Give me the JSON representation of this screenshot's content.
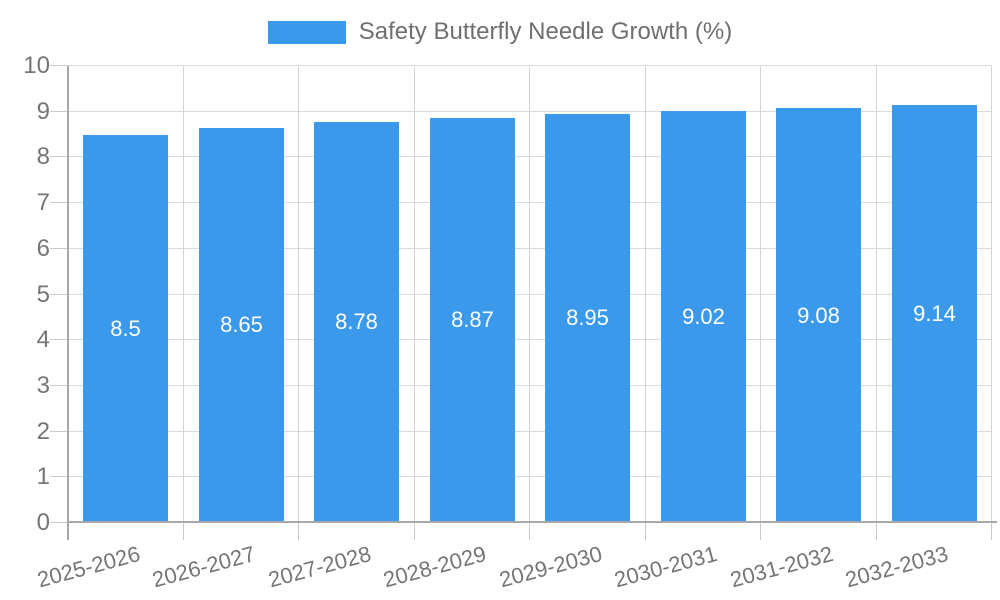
{
  "chart_data": {
    "type": "bar",
    "title": "Safety Butterfly Needle Growth (%)",
    "legend_position": "top",
    "categories": [
      "2025-2026",
      "2026-2027",
      "2027-2028",
      "2028-2029",
      "2029-2030",
      "2030-2031",
      "2031-2032",
      "2032-2033"
    ],
    "values": [
      8.5,
      8.65,
      8.78,
      8.87,
      8.95,
      9.02,
      9.08,
      9.14
    ],
    "value_labels": [
      "8.5",
      "8.65",
      "8.78",
      "8.87",
      "8.95",
      "9.02",
      "9.08",
      "9.14"
    ],
    "xlabel": "",
    "ylabel": "",
    "ylim": [
      0,
      10
    ],
    "yticks": [
      0,
      1,
      2,
      3,
      4,
      5,
      6,
      7,
      8,
      9,
      10
    ],
    "grid": true
  },
  "colors": {
    "bar": "#3B99EC",
    "hgrid": "#dcdcdc",
    "vgrid": "#d4d4d4",
    "tick": "#c9c9c9",
    "axis": "#a8a8a8",
    "axis_text": "#757575",
    "legend_text": "#6f6f6f",
    "bar_label_text": "#ffffff"
  }
}
